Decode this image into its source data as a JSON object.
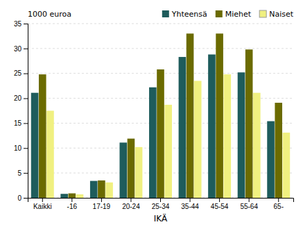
{
  "chart_data": {
    "type": "bar",
    "xlabel": "IKÄ",
    "ylabel": "1000 euroa",
    "categories": [
      "Kaikki",
      "-16",
      "17-19",
      "20-24",
      "25-34",
      "35-44",
      "45-54",
      "55-64",
      "65-"
    ],
    "series": [
      {
        "name": "Yhteensä",
        "color": "#1E5C5C",
        "values": [
          21.1,
          0.8,
          3.4,
          11.1,
          22.2,
          28.3,
          28.8,
          25.2,
          15.4
        ]
      },
      {
        "name": "Miehet",
        "color": "#6B6B00",
        "values": [
          24.8,
          0.9,
          3.5,
          11.9,
          25.8,
          33.0,
          33.0,
          29.8,
          19.1
        ]
      },
      {
        "name": "Naiset",
        "color": "#F0F080",
        "values": [
          17.5,
          0.7,
          3.1,
          10.2,
          18.7,
          23.5,
          24.8,
          21.1,
          13.1
        ]
      }
    ],
    "ylim": [
      0,
      35
    ],
    "yticks": [
      0,
      5,
      10,
      15,
      20,
      25,
      30,
      35
    ],
    "grid": true,
    "legend": "upper right"
  }
}
